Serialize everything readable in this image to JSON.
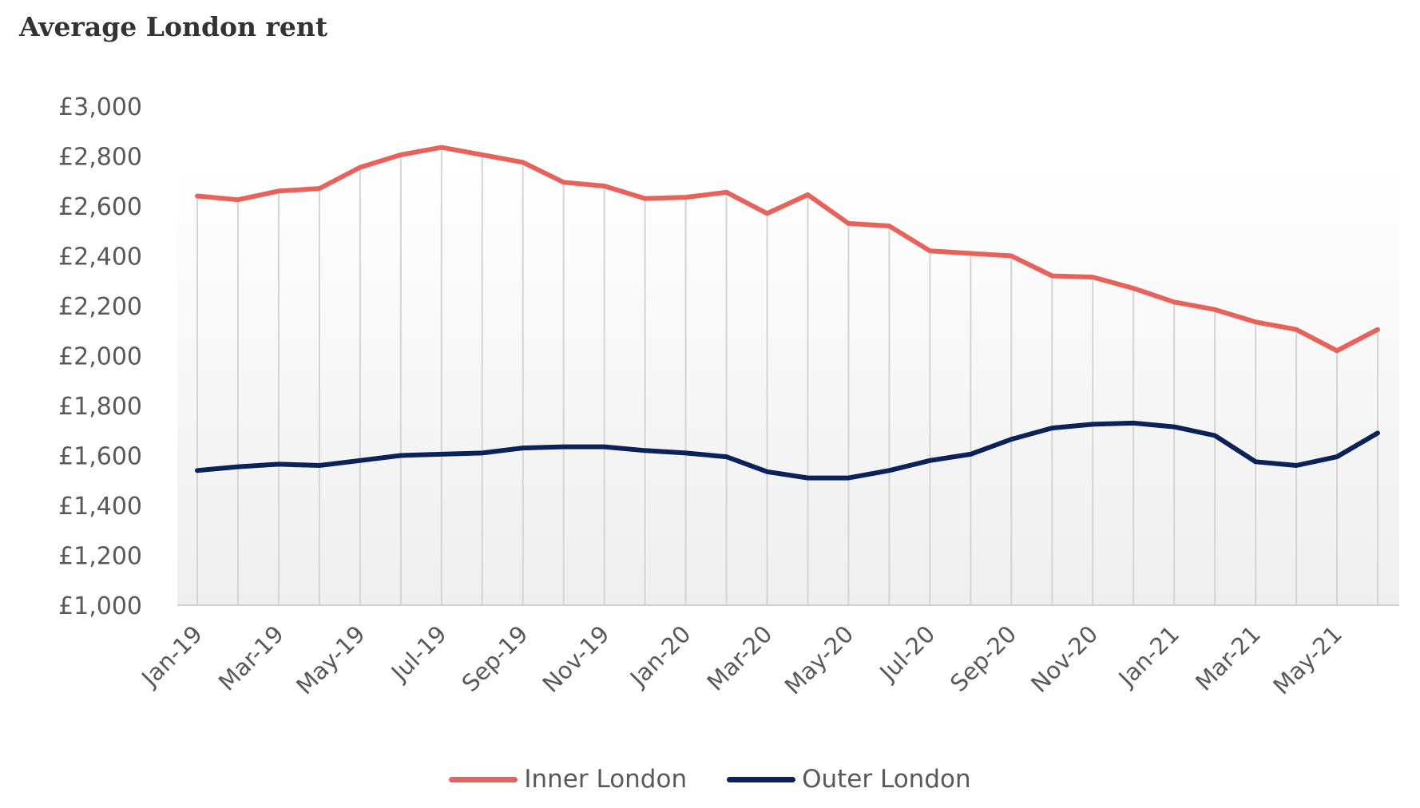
{
  "chart_data": {
    "type": "line",
    "title": "Average London rent",
    "xlabel": "",
    "ylabel": "",
    "ylim": [
      1000,
      3000
    ],
    "yticks": [
      "£1,000",
      "£1,200",
      "£1,400",
      "£1,600",
      "£1,800",
      "£2,000",
      "£2,200",
      "£2,400",
      "£2,600",
      "£2,800",
      "£3,000"
    ],
    "ytick_values": [
      1000,
      1200,
      1400,
      1600,
      1800,
      2000,
      2200,
      2400,
      2600,
      2800,
      3000
    ],
    "x": [
      "Jan-19",
      "Feb-19",
      "Mar-19",
      "Apr-19",
      "May-19",
      "Jun-19",
      "Jul-19",
      "Aug-19",
      "Sep-19",
      "Oct-19",
      "Nov-19",
      "Dec-19",
      "Jan-20",
      "Feb-20",
      "Mar-20",
      "Apr-20",
      "May-20",
      "Jun-20",
      "Jul-20",
      "Aug-20",
      "Sep-20",
      "Oct-20",
      "Nov-20",
      "Dec-20",
      "Jan-21",
      "Feb-21",
      "Mar-21",
      "Apr-21",
      "May-21",
      "Jun-21"
    ],
    "xtick_labels_shown": [
      "Jan-19",
      "Mar-19",
      "May-19",
      "Jul-19",
      "Sep-19",
      "Nov-19",
      "Jan-20",
      "Mar-20",
      "May-20",
      "Jul-20",
      "Sep-20",
      "Nov-20",
      "Jan-21",
      "Mar-21",
      "May-21"
    ],
    "grid": "vertical",
    "legend_position": "bottom",
    "series": [
      {
        "name": "Inner London",
        "color": "#e8625c",
        "values": [
          2640,
          2625,
          2660,
          2670,
          2755,
          2805,
          2835,
          2805,
          2775,
          2695,
          2680,
          2630,
          2635,
          2655,
          2570,
          2645,
          2530,
          2520,
          2420,
          2410,
          2400,
          2320,
          2315,
          2270,
          2215,
          2185,
          2135,
          2105,
          2020,
          2105
        ]
      },
      {
        "name": "Outer London",
        "color": "#0d2159",
        "values": [
          1540,
          1555,
          1565,
          1560,
          1580,
          1600,
          1605,
          1610,
          1630,
          1635,
          1635,
          1620,
          1610,
          1595,
          1535,
          1510,
          1510,
          1540,
          1580,
          1605,
          1665,
          1710,
          1725,
          1730,
          1715,
          1680,
          1575,
          1560,
          1595,
          1690
        ]
      }
    ]
  }
}
